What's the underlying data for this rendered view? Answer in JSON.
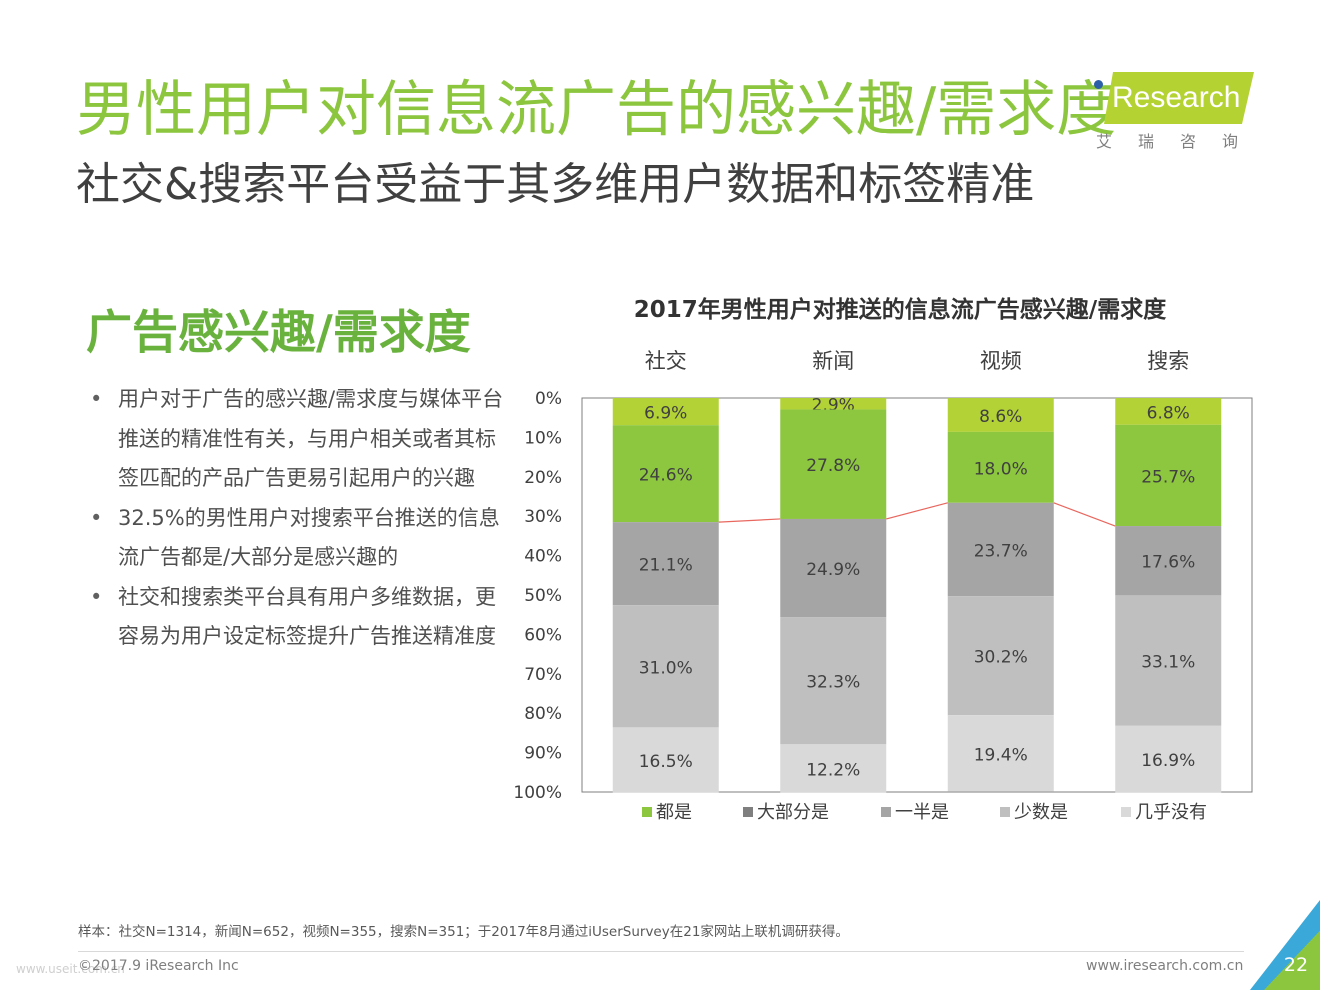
{
  "header": {
    "title": "男性用户对信息流广告的感兴趣/需求度",
    "subtitle": "社交&搜索平台受益于其多维用户数据和标签精准"
  },
  "logo": {
    "text": "Research",
    "cn": "艾瑞咨询",
    "brand_color": "#b4d333"
  },
  "left": {
    "heading": "广告感兴趣/需求度",
    "bullets": [
      "用户对于广告的感兴趣/需求度与媒体平台推送的精准性有关，与用户相关或者其标签匹配的产品广告更易引起用户的兴趣",
      "32.5%的男性用户对搜索平台推送的信息流广告都是/大部分是感兴趣的",
      "社交和搜索类平台具有用户多维数据，更容易为用户设定标签提升广告推送精准度"
    ]
  },
  "chart_data": {
    "type": "bar",
    "stacked": true,
    "orientation": "vertical",
    "title": "2017年男性用户对推送的信息流广告感兴趣/需求度",
    "categories": [
      "社交",
      "新闻",
      "视频",
      "搜索"
    ],
    "category_position": "top",
    "y_axis": {
      "ticks": [
        "0%",
        "10%",
        "20%",
        "30%",
        "40%",
        "50%",
        "60%",
        "70%",
        "80%",
        "90%",
        "100%"
      ],
      "range": [
        0,
        100
      ],
      "direction": "top-to-bottom"
    },
    "series": [
      {
        "name": "都是",
        "values": [
          6.9,
          2.9,
          8.6,
          6.8
        ],
        "labels": [
          "6.9%",
          "2.9%",
          "8.6%",
          "6.8%"
        ],
        "color": "#b3d235"
      },
      {
        "name": "大部分是",
        "values": [
          24.6,
          27.8,
          18.0,
          25.7
        ],
        "labels": [
          "24.6%",
          "27.8%",
          "18.0%",
          "25.7%"
        ],
        "color": "#8dc63f"
      },
      {
        "name": "一半是",
        "values": [
          21.1,
          24.9,
          23.7,
          17.6
        ],
        "labels": [
          "21.1%",
          "24.9%",
          "23.7%",
          "17.6%"
        ],
        "color": "#a5a5a5"
      },
      {
        "name": "少数是",
        "values": [
          31.0,
          32.3,
          30.2,
          33.1
        ],
        "labels": [
          "31.0%",
          "32.3%",
          "30.2%",
          "33.1%"
        ],
        "color": "#bfbfbf"
      },
      {
        "name": "几乎没有",
        "values": [
          16.5,
          12.2,
          19.4,
          16.9
        ],
        "labels": [
          "16.5%",
          "12.2%",
          "19.4%",
          "16.9%"
        ],
        "color": "#d9d9d9"
      }
    ],
    "legend": {
      "position": "bottom",
      "items": [
        "都是",
        "大部分是",
        "一半是",
        "少数是",
        "几乎没有"
      ],
      "colors": [
        "#8dc63f",
        "#7f7f7f",
        "#a5a5a5",
        "#bfbfbf",
        "#d9d9d9"
      ]
    },
    "connector_line_color": "#e8675f",
    "grid": false
  },
  "footer": {
    "note": "样本：社交N=1314，新闻N=652，视频N=355，搜索N=351；于2017年8月通过iUserSurvey在21家网站上联机调研获得。",
    "copyright": "©2017.9 iResearch Inc",
    "url": "www.iresearch.com.cn",
    "page": "22",
    "watermark": "www.useit.com.cn"
  }
}
